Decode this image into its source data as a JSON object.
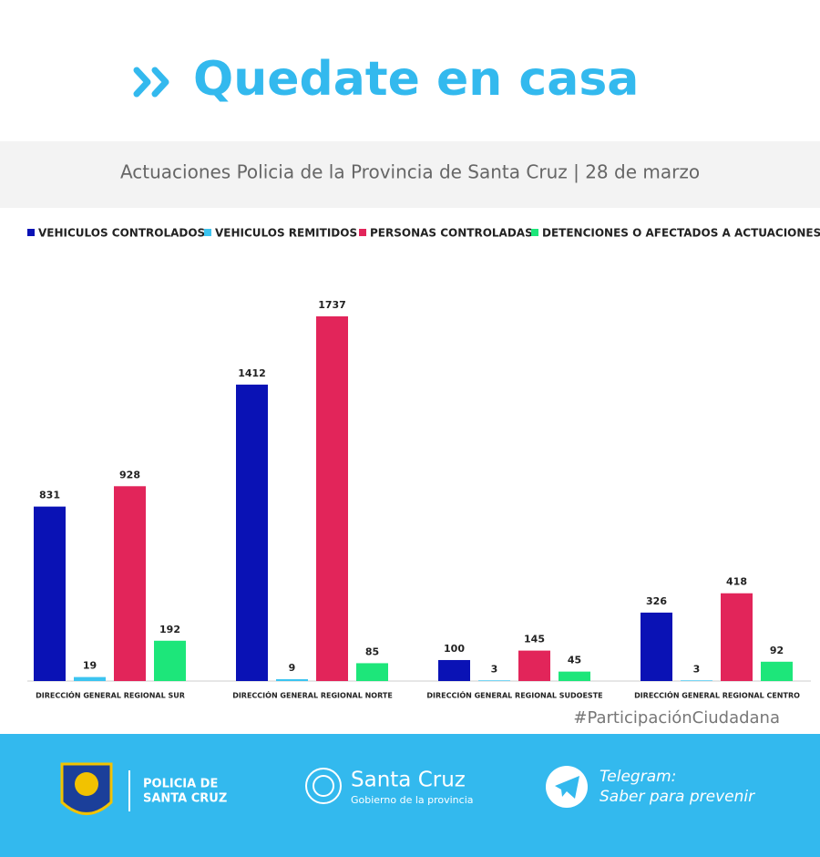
{
  "header": {
    "title": "Quedate en casa"
  },
  "chart_data": {
    "type": "bar",
    "title": "Actuaciones Policia de la Provincia de Santa Cruz | 28 de marzo",
    "categories": [
      "DIRECCIÓN GENERAL REGIONAL SUR",
      "DIRECCIÓN GENERAL REGIONAL NORTE",
      "DIRECCIÓN GENERAL REGIONAL SUDOESTE",
      "DIRECCIÓN GENERAL REGIONAL CENTRO"
    ],
    "series": [
      {
        "name": "VEHICULOS CONTROLADOS",
        "color": "#0a12b5",
        "values": [
          831,
          1412,
          100,
          326
        ]
      },
      {
        "name": "VEHICULOS REMITIDOS",
        "color": "#3cc4f0",
        "values": [
          19,
          9,
          3,
          3
        ]
      },
      {
        "name": "PERSONAS CONTROLADAS",
        "color": "#e2255a",
        "values": [
          928,
          1737,
          145,
          418
        ]
      },
      {
        "name": "DETENCIONES O AFECTADOS A ACTUACIONES",
        "color": "#1de67a",
        "values": [
          192,
          85,
          45,
          92
        ]
      }
    ],
    "legend": "top"
  },
  "hashtag": "#ParticipaciónCiudadana",
  "footer": {
    "police_line1": "POLICIA DE",
    "police_line2": "SANTA CRUZ",
    "gov_name": "Santa Cruz",
    "gov_sub": "Gobierno de la provincia",
    "telegram": "Telegram:",
    "telegram_sub": "Saber para prevenir"
  }
}
